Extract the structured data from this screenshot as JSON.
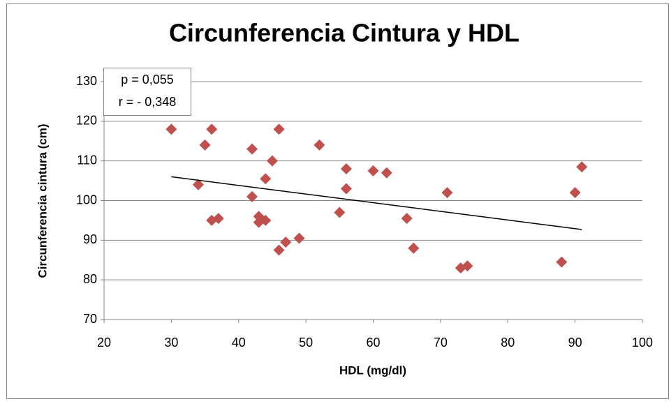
{
  "chart_data": {
    "type": "scatter",
    "title": "Circunferencia Cintura y HDL",
    "xlabel": "HDL (mg/dl)",
    "ylabel": "Circunferencia cintura (cm)",
    "annotations": [
      "p = 0,055",
      "r = - 0,348"
    ],
    "xlim": [
      20,
      100
    ],
    "xticks": [
      20,
      30,
      40,
      50,
      60,
      70,
      80,
      90,
      100
    ],
    "ylim": [
      70,
      130
    ],
    "yticks": [
      70,
      80,
      90,
      100,
      110,
      120,
      130
    ],
    "grid": true,
    "series": [
      {
        "color": "#c0504d",
        "x": [
          30,
          34,
          35,
          36,
          36,
          37,
          42,
          42,
          43,
          43,
          44,
          44,
          45,
          46,
          46,
          47,
          49,
          52,
          55,
          56,
          56,
          60,
          62,
          65,
          66,
          71,
          73,
          74,
          88,
          90,
          91
        ],
        "values": [
          118,
          104,
          114,
          118,
          95,
          95.5,
          113,
          101,
          96,
          94.5,
          105.5,
          95,
          110,
          118,
          87.5,
          89.5,
          90.5,
          114,
          97,
          108,
          103,
          107.5,
          107,
          95.5,
          88,
          102,
          83,
          83.5,
          84.5,
          102,
          108.5
        ]
      }
    ],
    "trendline": {
      "color": "#000000",
      "x": [
        30,
        91
      ],
      "values": [
        106,
        92.7
      ]
    }
  }
}
